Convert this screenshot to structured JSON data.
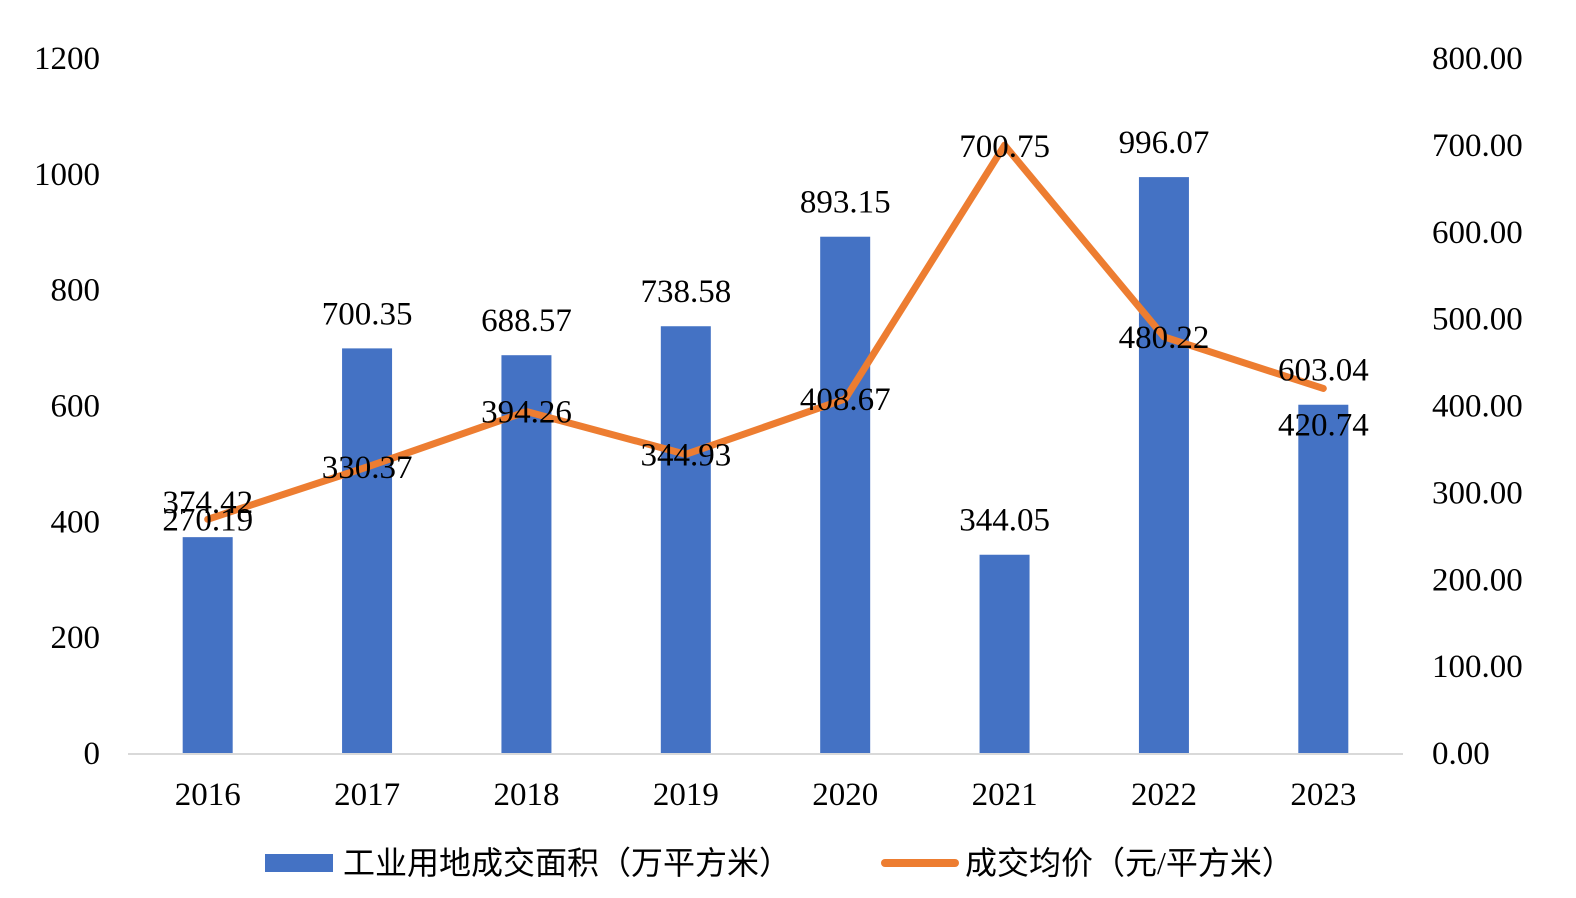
{
  "chart_data": {
    "type": "bar",
    "categories": [
      "2016",
      "2017",
      "2018",
      "2019",
      "2020",
      "2021",
      "2022",
      "2023"
    ],
    "series": [
      {
        "name": "工业用地成交面积（万平方米）",
        "type": "bar",
        "axis": "left",
        "color": "#4472C4",
        "values": [
          374.42,
          700.35,
          688.57,
          738.58,
          893.15,
          344.05,
          996.07,
          603.04
        ]
      },
      {
        "name": "成交均价（元/平方米）",
        "type": "line",
        "axis": "right",
        "color": "#ED7D31",
        "values": [
          270.19,
          330.37,
          394.26,
          344.93,
          408.67,
          700.75,
          480.22,
          420.74
        ]
      }
    ],
    "y_left": {
      "range": [
        0,
        1200
      ],
      "ticks": [
        "0",
        "200",
        "400",
        "600",
        "800",
        "1000",
        "1200"
      ]
    },
    "y_right": {
      "range": [
        0,
        800
      ],
      "ticks": [
        "0.00",
        "100.00",
        "200.00",
        "300.00",
        "400.00",
        "500.00",
        "600.00",
        "700.00",
        "800.00"
      ]
    },
    "title": "",
    "xlabel": "",
    "ylabel": "",
    "grid": false,
    "data_labels": true,
    "legend_position": "bottom",
    "axis_line_color": "#D9D9D9"
  }
}
